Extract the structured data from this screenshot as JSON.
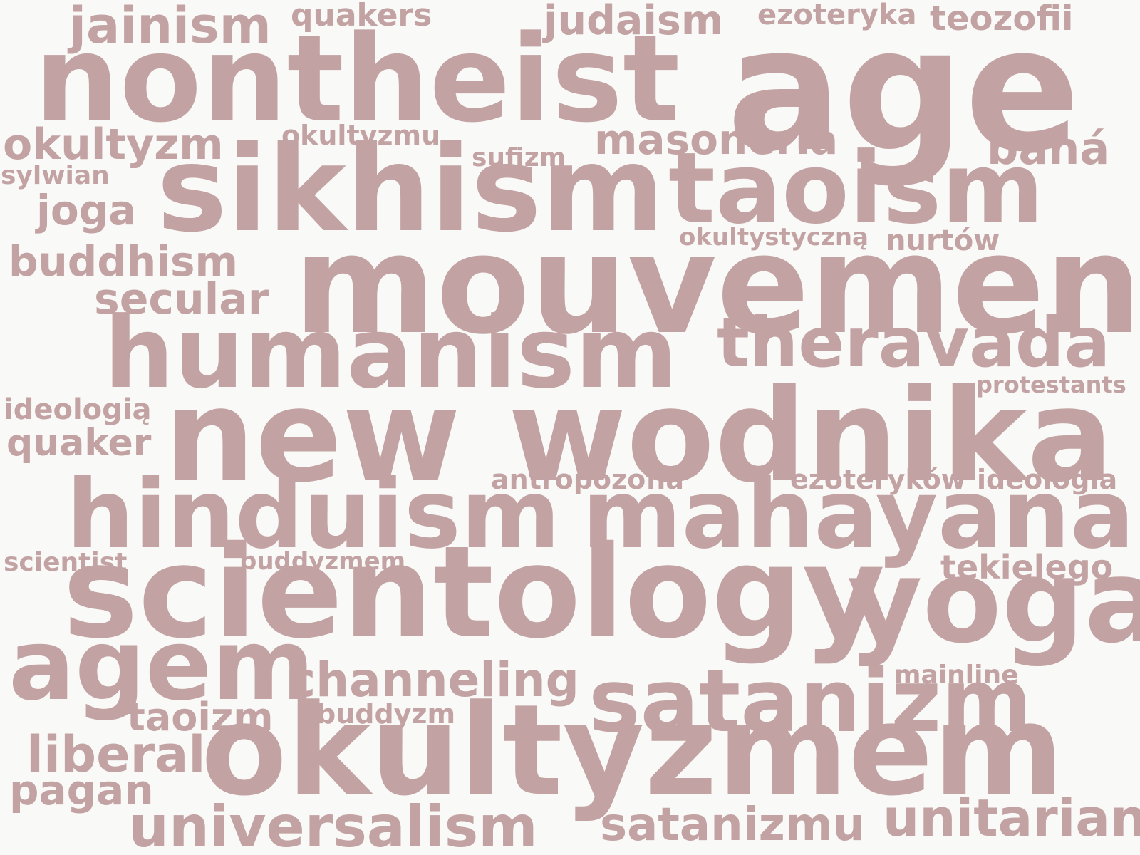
{
  "word_color": "#c2a2a2",
  "background_color": "#f9f9f7",
  "words": [
    "jainism",
    "quakers",
    "judaism",
    "ezoteryka",
    "teozofii",
    "nontheist",
    "age",
    "okultyzm",
    "okultyzmu",
    "masoneria",
    "bahá",
    "sufizm",
    "sylwian",
    "sikhism",
    "taoism",
    "joga",
    "okultystyczną",
    "nurtów",
    "buddhism",
    "mouvement",
    "secular",
    "humanism",
    "theravada",
    "protestants",
    "ideologią",
    "new",
    "wodnika",
    "quaker",
    "antropozofia",
    "ezoteryków",
    "ideologia",
    "hinduism",
    "mahayana",
    "scientist",
    "buddyzmem",
    "tekielego",
    "scientology",
    "yoga",
    "agem",
    "channeling",
    "mainline",
    "satanizm",
    "taoizm",
    "buddyzm",
    "okultyzmem",
    "liberal",
    "pagan",
    "universalism",
    "satanizmu",
    "unitarian"
  ]
}
